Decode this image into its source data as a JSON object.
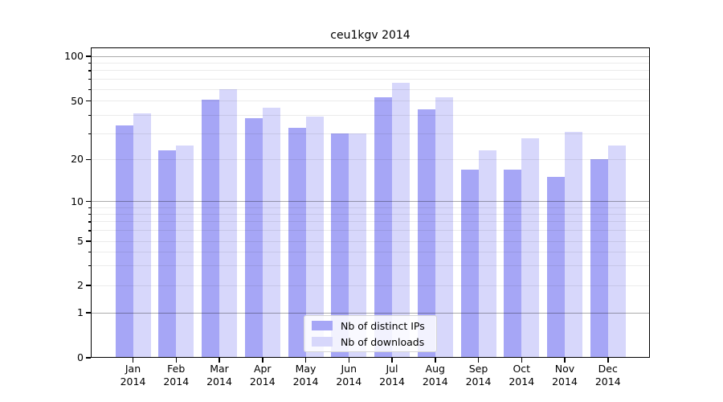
{
  "title": "ceu1kgv 2014",
  "chart_data": {
    "type": "bar",
    "title": "ceu1kgv 2014",
    "categories": [
      "Jan 2014",
      "Feb 2014",
      "Mar 2014",
      "Apr 2014",
      "May 2014",
      "Jun 2014",
      "Jul 2014",
      "Aug 2014",
      "Sep 2014",
      "Oct 2014",
      "Nov 2014",
      "Dec 2014"
    ],
    "series": [
      {
        "name": "Nb of distinct IPs",
        "color": "#a6a6f6",
        "values": [
          34,
          23,
          51,
          38,
          33,
          30,
          53,
          44,
          17,
          17,
          15,
          20
        ]
      },
      {
        "name": "Nb of downloads",
        "color": "#d7d7fb",
        "values": [
          41,
          25,
          60,
          45,
          39,
          30,
          66,
          53,
          23,
          28,
          31,
          25
        ]
      }
    ],
    "yscale": "symlog",
    "ylim": [
      0,
      110
    ],
    "yticks": [
      0,
      1,
      2,
      5,
      10,
      20,
      50,
      100
    ],
    "ytick_labels": [
      "0",
      "1",
      "2",
      "5",
      "10",
      "20",
      "50",
      "100"
    ],
    "minor_gridlines": [
      2,
      3,
      4,
      5,
      6,
      7,
      8,
      9,
      20,
      30,
      40,
      50,
      60,
      70,
      80,
      90
    ],
    "major_gridlines": [
      1,
      10,
      100
    ],
    "grid": true,
    "legend_position": "lower center",
    "xlabel": "",
    "ylabel": ""
  }
}
